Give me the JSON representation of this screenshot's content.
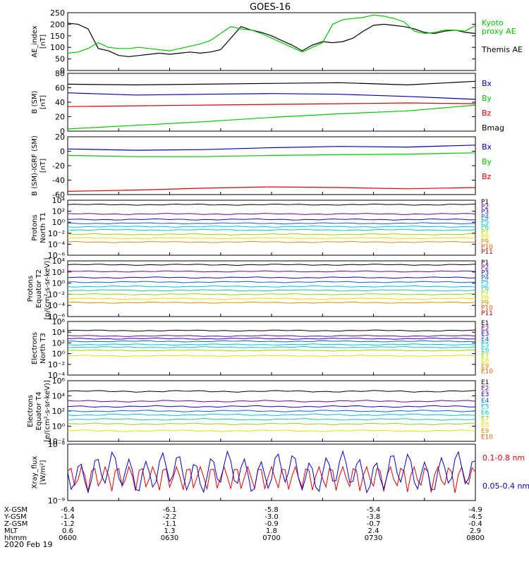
{
  "title": "GOES-16",
  "colors": {
    "black": "#000000",
    "green": "#00c800",
    "blue": "#0000c8",
    "red": "#e00000",
    "purple": "#7000a0",
    "darkblue": "#2000c0",
    "medblue": "#1060e0",
    "cyan": "#00c0e0",
    "teal": "#00d0c0",
    "yellow": "#e0e000",
    "yelgreen": "#a0d000",
    "orange": "#e09000",
    "darkorange": "#e06000",
    "darkred": "#c00000"
  },
  "xaxis": {
    "rows": [
      {
        "label": "X-GSM",
        "values": [
          "-6.4",
          "-6.1",
          "-5.8",
          "-5.4",
          "-4.9"
        ]
      },
      {
        "label": "Y-GSM",
        "values": [
          "-1.4",
          "-2.2",
          "-3.0",
          "-3.8",
          "-4.5"
        ]
      },
      {
        "label": "Z-GSM",
        "values": [
          "-1.2",
          "-1.1",
          "-0.9",
          "-0.7",
          "-0.4"
        ]
      },
      {
        "label": "MLT",
        "values": [
          "0.6",
          "1.3",
          "1.8",
          "2.4",
          "2.9"
        ]
      },
      {
        "label": "hhmm",
        "values": [
          "0600",
          "0630",
          "0700",
          "0730",
          "0800"
        ]
      }
    ],
    "date": "2020 Feb 19"
  },
  "chart_data": [
    {
      "type": "line",
      "ylabel": "AE_index\n[nT]",
      "ylim": [
        0,
        250
      ],
      "yticks": [
        "0",
        "50",
        "100",
        "150",
        "200",
        "250"
      ],
      "legend": [
        {
          "name": "Kyoto\nproxy AE",
          "color": "green"
        },
        {
          "name": "Themis AE",
          "color": "black"
        }
      ],
      "series": [
        {
          "name": "Themis AE",
          "color": "black",
          "t": [
            0,
            3,
            6,
            9,
            12,
            15,
            18,
            21,
            24,
            27,
            30,
            33,
            36,
            39,
            42,
            45,
            48,
            51,
            54,
            57,
            60,
            63,
            66,
            69,
            72,
            75,
            78,
            81,
            84,
            87,
            90,
            93,
            96,
            99,
            102,
            105,
            108,
            111,
            114,
            117,
            120
          ],
          "values": [
            205,
            200,
            180,
            95,
            85,
            65,
            60,
            65,
            70,
            75,
            70,
            75,
            80,
            75,
            80,
            90,
            140,
            190,
            175,
            165,
            150,
            130,
            110,
            85,
            110,
            125,
            120,
            125,
            140,
            170,
            195,
            200,
            195,
            190,
            180,
            165,
            160,
            170,
            175,
            165,
            160
          ]
        },
        {
          "name": "Kyoto proxy AE",
          "color": "green",
          "t": [
            0,
            3,
            6,
            9,
            12,
            15,
            18,
            21,
            24,
            27,
            30,
            33,
            36,
            39,
            42,
            45,
            48,
            51,
            54,
            57,
            60,
            63,
            66,
            69,
            72,
            75,
            78,
            81,
            84,
            87,
            90,
            93,
            96,
            99,
            102,
            105,
            108,
            111,
            114,
            117,
            120
          ],
          "values": [
            75,
            80,
            95,
            120,
            100,
            95,
            95,
            100,
            95,
            90,
            85,
            95,
            105,
            115,
            130,
            160,
            190,
            180,
            175,
            160,
            140,
            120,
            100,
            80,
            100,
            120,
            200,
            220,
            225,
            230,
            240,
            235,
            225,
            210,
            170,
            160,
            165,
            175,
            175,
            170,
            195
          ]
        }
      ]
    },
    {
      "type": "line",
      "ylabel": "B (SM)\n[nT]",
      "ylim": [
        0,
        80
      ],
      "yticks": [
        "0",
        "20",
        "40",
        "60",
        "80"
      ],
      "legend": [
        {
          "name": "Bx",
          "color": "blue"
        },
        {
          "name": "By",
          "color": "green"
        },
        {
          "name": "Bz",
          "color": "red"
        },
        {
          "name": "Bmag",
          "color": "black"
        }
      ],
      "series": [
        {
          "name": "Bmag",
          "color": "black",
          "t": [
            0,
            20,
            40,
            60,
            80,
            100,
            120
          ],
          "values": [
            65,
            64,
            65,
            66,
            67,
            64,
            69
          ]
        },
        {
          "name": "Bx",
          "color": "blue",
          "t": [
            0,
            20,
            40,
            60,
            80,
            100,
            120
          ],
          "values": [
            53,
            50,
            51,
            52,
            51,
            48,
            44
          ]
        },
        {
          "name": "Bz",
          "color": "red",
          "t": [
            0,
            20,
            40,
            60,
            80,
            100,
            120
          ],
          "values": [
            34,
            35,
            36,
            37,
            38,
            39,
            38
          ]
        },
        {
          "name": "By",
          "color": "green",
          "t": [
            0,
            20,
            40,
            60,
            80,
            100,
            120
          ],
          "values": [
            3,
            8,
            13,
            19,
            24,
            28,
            36
          ]
        }
      ]
    },
    {
      "type": "line",
      "ylabel": "B (SM)-IGRF (SM)\n[nT]",
      "ylim": [
        -65,
        25
      ],
      "yticks": [
        "-60",
        "-40",
        "-20",
        "0",
        "20"
      ],
      "legend": [
        {
          "name": "Bx",
          "color": "blue"
        },
        {
          "name": "By",
          "color": "green"
        },
        {
          "name": "Bz",
          "color": "red"
        }
      ],
      "series": [
        {
          "name": "Bx",
          "color": "blue",
          "t": [
            0,
            20,
            40,
            60,
            80,
            100,
            120
          ],
          "values": [
            6,
            4,
            5,
            8,
            10,
            9,
            12
          ]
        },
        {
          "name": "By",
          "color": "green",
          "t": [
            0,
            20,
            40,
            60,
            80,
            100,
            120
          ],
          "values": [
            -4,
            -6,
            -6,
            -4,
            -3,
            -2,
            0
          ]
        },
        {
          "name": "Bz",
          "color": "red",
          "t": [
            0,
            20,
            40,
            60,
            80,
            100,
            120
          ],
          "values": [
            -60,
            -58,
            -55,
            -53,
            -54,
            -56,
            -54
          ]
        }
      ]
    },
    {
      "type": "line",
      "ylabel": "Protons\nNorth T1",
      "ylog": true,
      "yticks": [
        "10⁻⁶",
        "10⁻⁴",
        "10⁻²",
        "10⁰",
        "10²",
        "10⁴"
      ],
      "legend": [
        "P1",
        "P2",
        "P3",
        "P4",
        "P5",
        "P6",
        "P7",
        "P8",
        "P9",
        "P10",
        "P11"
      ],
      "series_log": [
        3.2,
        1.5,
        0.5,
        -0.2,
        -0.8,
        -1.4,
        -2.2,
        -2.9,
        -3.6
      ]
    },
    {
      "type": "line",
      "ylabel": "Protons\nEquator T2\n[p/(cm²-s-sr-keV)]",
      "ylog": true,
      "yticks": [
        "10⁻⁶",
        "10⁻⁴",
        "10⁻²",
        "10⁰",
        "10²",
        "10⁴"
      ],
      "legend": [
        "P1",
        "P2",
        "P3",
        "P4",
        "P5",
        "P6",
        "P7",
        "P8",
        "P9",
        "P10",
        "P11"
      ],
      "series_log": [
        3.3,
        2.1,
        1.0,
        0.2,
        -0.6,
        -1.3,
        -2.0,
        -2.8,
        -3.5
      ]
    },
    {
      "type": "line",
      "ylabel": "Electrons\nNorth T3",
      "ylog": true,
      "yticks": [
        "10⁻⁴",
        "10⁻²",
        "10⁰",
        "10²",
        "10⁴",
        "10⁶"
      ],
      "legend": [
        "E1",
        "E2",
        "E3",
        "E4",
        "E5",
        "E6",
        "E7",
        "E8",
        "E9",
        "E10"
      ],
      "series_log": [
        4.3,
        3.3,
        2.8,
        2.3,
        1.7,
        1.2,
        0.6,
        -0.4
      ]
    },
    {
      "type": "line",
      "ylabel": "Electrons\nEquator T4\n[e/(cm²-s-sr-keV)]",
      "ylog": true,
      "yticks": [
        "10⁻²",
        "10⁰",
        "10²",
        "10⁴",
        "10⁶"
      ],
      "legend": [
        "E1",
        "E2",
        "E3",
        "E4",
        "E5",
        "E6",
        "E7",
        "E8",
        "E9",
        "E10"
      ],
      "series_log": [
        4.6,
        3.3,
        2.6,
        2.0,
        1.5,
        0.9,
        0.3,
        -0.6
      ]
    },
    {
      "type": "line",
      "ylabel": "Xray_flux\n[W/m²]",
      "ylog": true,
      "yticks": [
        "10⁻⁹",
        "10⁻⁸"
      ],
      "legend": [
        {
          "name": "0.1-0.8 nm",
          "color": "red"
        },
        {
          "name": "0.05-0.4 nm",
          "color": "blue"
        }
      ]
    }
  ]
}
